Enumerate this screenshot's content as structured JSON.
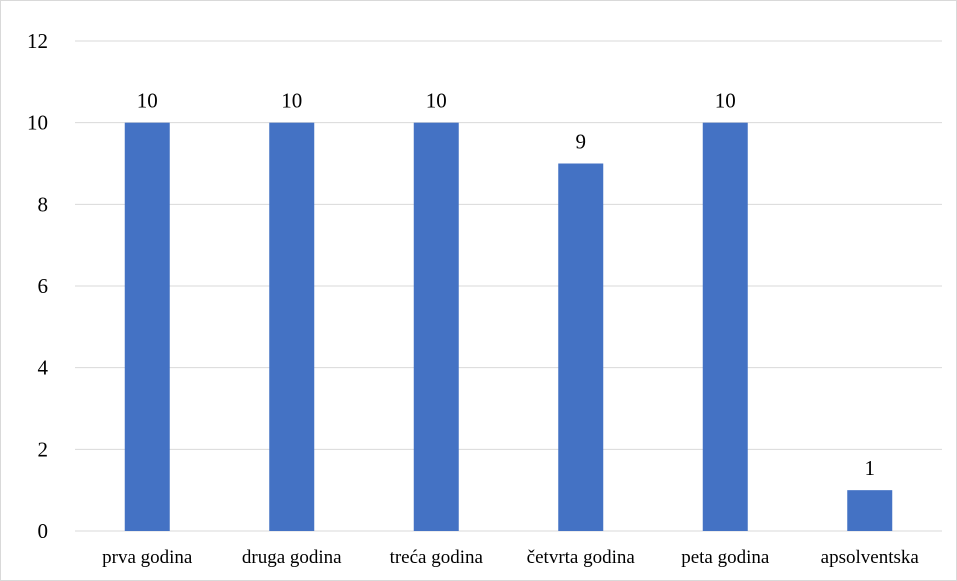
{
  "chart_data": {
    "type": "bar",
    "categories": [
      "prva godina",
      "druga godina",
      "treća godina",
      "četvrta godina",
      "peta godina",
      "apsolventska"
    ],
    "values": [
      10,
      10,
      10,
      9,
      10,
      1
    ],
    "data_labels": [
      "10",
      "10",
      "10",
      "9",
      "10",
      "1"
    ],
    "title": "",
    "xlabel": "",
    "ylabel": "",
    "ylim": [
      0,
      12
    ],
    "yticks": [
      "0",
      "2",
      "4",
      "6",
      "8",
      "10",
      "12"
    ],
    "grid": true,
    "legend": "none",
    "bar_color": "#4472c4",
    "grid_color": "#d9d9d9"
  }
}
